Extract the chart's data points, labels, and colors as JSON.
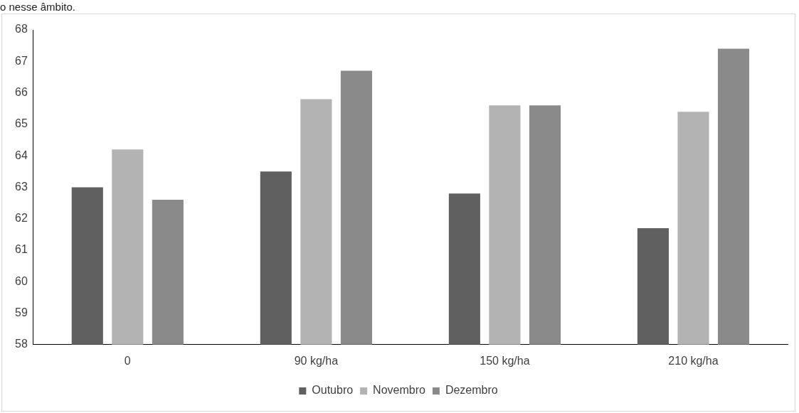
{
  "chart_data": {
    "type": "bar",
    "categories": [
      "0",
      "90 kg/ha",
      "150 kg/ha",
      "210 kg/ha"
    ],
    "series": [
      {
        "name": "Outubro",
        "color": "#606060",
        "values": [
          63.0,
          63.5,
          62.8,
          61.7
        ]
      },
      {
        "name": "Novembro",
        "color": "#b3b3b3",
        "values": [
          64.2,
          65.8,
          65.6,
          65.4
        ]
      },
      {
        "name": "Dezembro",
        "color": "#8a8a8a",
        "values": [
          62.6,
          66.7,
          65.6,
          67.4
        ]
      }
    ],
    "ylim": [
      58,
      68
    ],
    "yticks": [
      58,
      59,
      60,
      61,
      62,
      63,
      64,
      65,
      66,
      67,
      68
    ],
    "grid": false,
    "legend": "bottom",
    "annotations": [
      "o nesse âmbito."
    ]
  }
}
